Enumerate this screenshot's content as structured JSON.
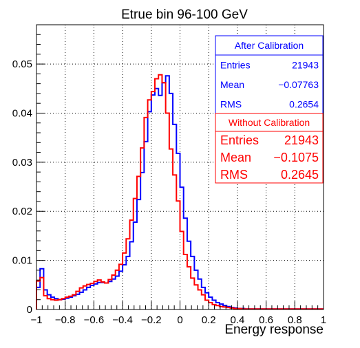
{
  "chart_data": {
    "type": "line",
    "title": "Etrue bin 96-100 GeV",
    "xlabel": "Energy response",
    "ylabel": "",
    "xlim": [
      -1,
      1
    ],
    "ylim": [
      0,
      0.058
    ],
    "grid": true,
    "x_ticks": [
      "−1",
      "−0.8",
      "−0.6",
      "−0.4",
      "−0.2",
      "0",
      "0.2",
      "0.4",
      "0.6",
      "0.8",
      "1"
    ],
    "y_ticks": [
      "0",
      "0.01",
      "0.02",
      "0.03",
      "0.04",
      "0.05"
    ],
    "bin_edges_start": -1.0,
    "bin_width": 0.025,
    "series": [
      {
        "name": "After Calibration",
        "color": "#0000ff",
        "values": [
          0.0045,
          0.0083,
          0.004,
          0.003,
          0.0025,
          0.0022,
          0.002,
          0.0021,
          0.0023,
          0.0025,
          0.0028,
          0.0031,
          0.0035,
          0.004,
          0.0045,
          0.0049,
          0.0052,
          0.0055,
          0.0055,
          0.0054,
          0.0057,
          0.0062,
          0.0068,
          0.0078,
          0.0091,
          0.0108,
          0.0138,
          0.0178,
          0.0224,
          0.0279,
          0.0342,
          0.0403,
          0.0437,
          0.045,
          0.0436,
          0.0462,
          0.0476,
          0.044,
          0.0377,
          0.0318,
          0.0249,
          0.0186,
          0.0139,
          0.0108,
          0.008,
          0.0062,
          0.0045,
          0.0034,
          0.0025,
          0.0019,
          0.0014,
          0.0011,
          0.0008,
          0.0006,
          0.0004,
          0.0003,
          0.0002,
          0.0002,
          0.0001,
          0.0001,
          0.0001,
          0.0001,
          0.0001,
          0.0001,
          0.0001,
          0.0001,
          0.0001,
          0.0001,
          0.0001,
          0.0001,
          0.0001,
          0.0001,
          0.0001,
          0.0001,
          0.0001,
          0.0001,
          0.0001,
          0.0001,
          0.0001,
          0.0001
        ]
      },
      {
        "name": "Without Calibration",
        "color": "#ff0000",
        "values": [
          0.0058,
          0.0065,
          0.0028,
          0.0022,
          0.002,
          0.0019,
          0.002,
          0.0022,
          0.0025,
          0.0027,
          0.003,
          0.0037,
          0.0044,
          0.0048,
          0.0051,
          0.0053,
          0.0057,
          0.006,
          0.0056,
          0.0054,
          0.0061,
          0.007,
          0.008,
          0.0092,
          0.0115,
          0.0144,
          0.0182,
          0.0226,
          0.0271,
          0.0329,
          0.0391,
          0.0427,
          0.0444,
          0.047,
          0.0478,
          0.0462,
          0.04,
          0.0327,
          0.0274,
          0.0221,
          0.0159,
          0.0112,
          0.0087,
          0.0064,
          0.005,
          0.004,
          0.003,
          0.0019,
          0.0014,
          0.001,
          0.0008,
          0.0006,
          0.0005,
          0.0004,
          0.0003,
          0.0002,
          0.0002,
          0.0001,
          0.0001,
          0.0001,
          0.0001,
          0.0001,
          0.0001,
          0.0001,
          0.0001,
          0.0001,
          0.0001,
          0.0001,
          0.0001,
          0.0001,
          0.0001,
          0.0001,
          0.0001,
          0.0001,
          0.0001,
          0.0001,
          0.0001,
          0.0001,
          0.0001,
          0.0001
        ]
      }
    ],
    "stat_boxes": [
      {
        "title": "After Calibration",
        "color": "#0000ff",
        "rows": [
          {
            "label": "Entries",
            "value": "21943"
          },
          {
            "label": "Mean",
            "value": "−0.07763"
          },
          {
            "label": "RMS",
            "value": "0.2654"
          }
        ]
      },
      {
        "title": "Without Calibration",
        "color": "#ff0000",
        "rows": [
          {
            "label": "Entries",
            "value": "21943"
          },
          {
            "label": "Mean",
            "value": "−0.1075"
          },
          {
            "label": "RMS",
            "value": "0.2645"
          }
        ]
      }
    ]
  }
}
